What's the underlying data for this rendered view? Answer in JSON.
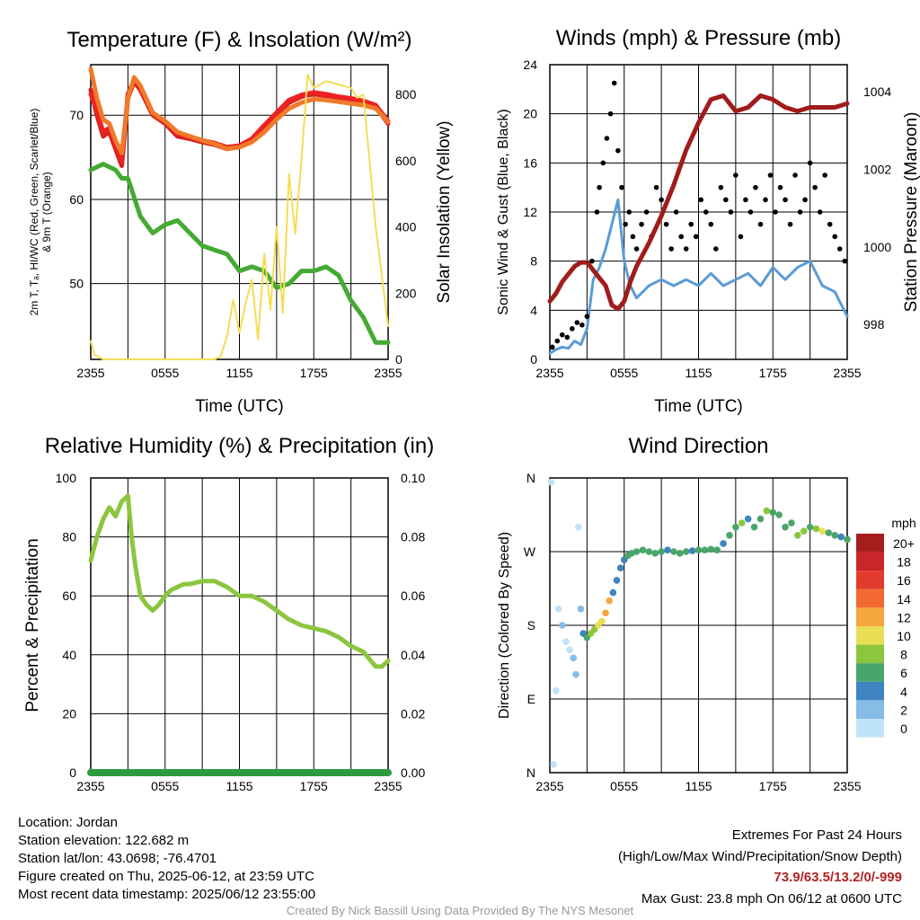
{
  "chart_data": [
    {
      "type": "line",
      "title": "Temperature (F) & Insolation (W/m²)",
      "xlabel": "Time (UTC)",
      "ylabel": "2m T, Td, HI/WC (Red, Green, Scarlet/Blue) & 9m T (Orange)",
      "ylabel_lines": [
        "2m T, Tₐ, HI/WC (Red, Green, Scarlet/Blue)",
        "& 9m T (Orange)"
      ],
      "y2label": "Solar Insolation (Yellow)",
      "x_ticks": [
        "2355",
        "0555",
        "1155",
        "1755",
        "2355"
      ],
      "y_ticks": [
        50,
        60,
        70
      ],
      "y2_ticks": [
        0,
        200,
        400,
        600,
        800
      ],
      "ylim": [
        41,
        76
      ],
      "y2lim": [
        0,
        890
      ],
      "xlim_hours": [
        0,
        24
      ],
      "grid": true,
      "series": [
        {
          "name": "2m T",
          "color": "#d42020",
          "axis": "left",
          "x": [
            0,
            0.5,
            1.0,
            1.5,
            2.0,
            2.5,
            3.0,
            3.5,
            4.0,
            5.0,
            6.0,
            7.0,
            8.0,
            9.0,
            10.0,
            11.0,
            12.0,
            13.0,
            14.0,
            15.0,
            16.0,
            17.0,
            18.0,
            19.0,
            20.0,
            21.0,
            22.0,
            23.0,
            24.0
          ],
          "y": [
            73,
            70,
            67.5,
            68,
            66,
            64,
            72,
            74,
            73,
            70,
            69,
            67.5,
            67.2,
            66.8,
            66.5,
            66,
            66.2,
            67,
            68.5,
            70,
            71.5,
            72.2,
            72.5,
            72.3,
            72,
            71.8,
            71.5,
            71,
            69
          ]
        },
        {
          "name": "HI/WC",
          "color": "#ee2222",
          "axis": "left",
          "x": [
            0,
            0.5,
            1.0,
            1.5,
            2.0,
            2.5,
            3.0,
            3.5,
            4.0,
            5.0,
            6.0,
            7.0,
            8.0,
            9.0,
            10.0,
            11.0,
            12.0,
            13.0,
            14.0,
            15.0,
            16.0,
            17.0,
            18.0,
            19.0,
            20.0,
            21.0,
            22.0,
            23.0,
            24.0
          ],
          "y": [
            72.5,
            70.5,
            68,
            68.5,
            66.5,
            64.5,
            72.5,
            74.2,
            73.2,
            70.2,
            69.2,
            67.8,
            67.4,
            67,
            66.7,
            66.2,
            66.4,
            67.2,
            68.8,
            70.3,
            71.8,
            72.4,
            72.7,
            72.5,
            72.2,
            72,
            71.7,
            71.2,
            69.3
          ]
        },
        {
          "name": "9m T",
          "color": "#f07a2a",
          "axis": "left",
          "x": [
            0,
            0.5,
            1.0,
            1.5,
            2.0,
            2.5,
            3.0,
            3.5,
            4.0,
            5.0,
            6.0,
            7.0,
            8.0,
            9.0,
            10.0,
            11.0,
            12.0,
            13.0,
            14.0,
            15.0,
            16.0,
            17.0,
            18.0,
            19.0,
            20.0,
            21.0,
            22.0,
            23.0,
            24.0
          ],
          "y": [
            75.5,
            72,
            69.5,
            69,
            67,
            65.5,
            72,
            74.5,
            73.5,
            70.3,
            69.3,
            68,
            67.5,
            67,
            66.6,
            66,
            66.2,
            66.8,
            68,
            69.5,
            70.8,
            71.5,
            71.9,
            71.8,
            71.6,
            71.4,
            71.2,
            70.8,
            69.2
          ]
        },
        {
          "name": "Td",
          "color": "#44aa33",
          "axis": "left",
          "x": [
            0,
            1.0,
            2.0,
            2.5,
            3.0,
            4.0,
            5.0,
            6.0,
            7.0,
            8.0,
            9.0,
            10.0,
            11.0,
            12.0,
            13.0,
            14.0,
            15.0,
            16.0,
            17.0,
            18.0,
            19.0,
            20.0,
            21.0,
            22.0,
            23.0,
            24.0
          ],
          "y": [
            63.5,
            64.2,
            63.5,
            62.5,
            62.5,
            58,
            56,
            57,
            57.5,
            56,
            54.5,
            54,
            53.5,
            51.5,
            52,
            51.5,
            49.5,
            50,
            51.5,
            51.5,
            52,
            51,
            48,
            46,
            43,
            43
          ]
        },
        {
          "name": "Insolation",
          "color": "#f5dd55",
          "axis": "right",
          "x": [
            0,
            0.3,
            1.0,
            2.0,
            4.0,
            6.0,
            8.0,
            9.0,
            9.5,
            10.0,
            10.5,
            11.0,
            11.5,
            12.0,
            12.5,
            13.0,
            13.5,
            14.0,
            14.5,
            15.0,
            15.5,
            16.0,
            16.5,
            17.0,
            17.5,
            18.0,
            19.0,
            20.0,
            21.0,
            21.5,
            22.0,
            22.5,
            23.0,
            23.5,
            24.0
          ],
          "y": [
            55,
            15,
            0,
            0,
            0,
            0,
            0,
            0,
            0,
            0,
            10,
            70,
            180,
            80,
            170,
            240,
            60,
            320,
            150,
            400,
            140,
            560,
            380,
            600,
            860,
            820,
            840,
            830,
            820,
            790,
            800,
            600,
            400,
            250,
            100
          ]
        }
      ]
    },
    {
      "type": "line",
      "title": "Winds (mph) & Pressure (mb)",
      "xlabel": "Time (UTC)",
      "ylabel": "Sonic Wind & Gust (Blue, Black)",
      "y2label": "Station Pressure (Maroon)",
      "x_ticks": [
        "2355",
        "0555",
        "1155",
        "1755",
        "2355"
      ],
      "y_ticks": [
        0,
        4,
        8,
        12,
        16,
        20,
        24
      ],
      "y2_ticks": [
        998,
        1000,
        1002,
        1004
      ],
      "ylim": [
        0,
        24
      ],
      "y2lim": [
        997.1,
        1004.7
      ],
      "grid": true,
      "series": [
        {
          "name": "Sonic Wind",
          "color": "#5b9bd5",
          "axis": "left",
          "x": [
            0,
            0.5,
            1.0,
            1.5,
            2.0,
            2.5,
            3.0,
            3.5,
            4.0,
            4.5,
            5.0,
            5.5,
            6.0,
            6.5,
            7.0,
            8.0,
            9.0,
            10.0,
            11.0,
            12.0,
            13.0,
            14.0,
            15.0,
            16.0,
            17.0,
            18.0,
            19.0,
            20.0,
            21.0,
            22.0,
            23.0,
            24.0
          ],
          "y": [
            0.5,
            0.8,
            1.0,
            0.9,
            1.5,
            1.2,
            2.5,
            6.5,
            7.5,
            9,
            11,
            13,
            8,
            6,
            5,
            6,
            6.5,
            6,
            6.5,
            6,
            7,
            6,
            6.5,
            7,
            6,
            7.5,
            6.5,
            7.5,
            8,
            6,
            5.5,
            3.5
          ]
        },
        {
          "name": "Gust",
          "color": "#000000",
          "axis": "left",
          "kind": "scatter",
          "x": [
            0.2,
            0.6,
            1.0,
            1.4,
            1.8,
            2.2,
            2.6,
            3.0,
            3.4,
            3.8,
            4.0,
            4.3,
            4.6,
            4.9,
            5.2,
            5.5,
            5.8,
            6.1,
            6.4,
            6.7,
            7.0,
            7.4,
            7.8,
            8.2,
            8.6,
            9.0,
            9.4,
            9.8,
            10.2,
            10.6,
            11.0,
            11.4,
            11.8,
            12.2,
            12.6,
            13.0,
            13.4,
            13.8,
            14.2,
            14.6,
            15.0,
            15.4,
            15.8,
            16.2,
            16.6,
            17.0,
            17.4,
            17.8,
            18.2,
            18.6,
            19.0,
            19.4,
            19.8,
            20.2,
            20.6,
            21.0,
            21.4,
            21.8,
            22.2,
            22.6,
            23.0,
            23.4,
            23.8
          ],
          "y": [
            1,
            1.5,
            2,
            1.8,
            2.5,
            3,
            2.8,
            3.5,
            8,
            12,
            14,
            16,
            18,
            20,
            22.5,
            17,
            14,
            11,
            12,
            10,
            9,
            11,
            12,
            10,
            14,
            13,
            11,
            9,
            12,
            10,
            9,
            11,
            10,
            13,
            12,
            11,
            9,
            14,
            13,
            12,
            15,
            10,
            13,
            12,
            14,
            11,
            13,
            15,
            12,
            14,
            13,
            11,
            15,
            12,
            13,
            16,
            14,
            12,
            15,
            11,
            10,
            9,
            8
          ]
        },
        {
          "name": "Station Pressure",
          "color": "#a01c1c",
          "axis": "right",
          "x": [
            0,
            0.5,
            1.0,
            1.5,
            2.0,
            2.5,
            3.0,
            3.5,
            4.0,
            4.5,
            5.0,
            5.5,
            6.0,
            6.5,
            7.0,
            8.0,
            9.0,
            10.0,
            11.0,
            12.0,
            13.0,
            14.0,
            15.0,
            16.0,
            17.0,
            18.0,
            19.0,
            20.0,
            21.0,
            22.0,
            23.0,
            24.0
          ],
          "y": [
            998.6,
            998.8,
            999.1,
            999.3,
            999.5,
            999.6,
            999.6,
            999.4,
            999.2,
            999.0,
            998.5,
            998.4,
            998.6,
            999.1,
            999.5,
            1000.1,
            1000.8,
            1001.6,
            1002.5,
            1003.2,
            1003.8,
            1003.9,
            1003.5,
            1003.6,
            1003.9,
            1003.8,
            1003.6,
            1003.5,
            1003.6,
            1003.6,
            1003.6,
            1003.7
          ]
        }
      ]
    },
    {
      "type": "line",
      "title": "Relative Humidity (%) & Precipitation (in)",
      "xlabel": "",
      "ylabel": "Percent & Precipitation",
      "x_ticks": [
        "2355",
        "0555",
        "1155",
        "1755",
        "2355"
      ],
      "y_ticks": [
        0,
        20,
        40,
        60,
        80,
        100
      ],
      "y2_ticks": [
        "0.00",
        "0.02",
        "0.04",
        "0.06",
        "0.08",
        "0.10"
      ],
      "ylim": [
        0,
        100
      ],
      "y2lim": [
        0,
        0.1
      ],
      "grid": true,
      "series": [
        {
          "name": "Relative Humidity",
          "color": "#8cc63f",
          "axis": "left",
          "x": [
            0,
            0.5,
            1.0,
            1.5,
            2.0,
            2.5,
            3.0,
            3.3,
            3.6,
            4.0,
            4.5,
            5.0,
            5.5,
            6.0,
            6.5,
            7.0,
            7.5,
            8.0,
            9.0,
            10.0,
            11.0,
            12.0,
            13.0,
            14.0,
            15.0,
            16.0,
            17.0,
            18.0,
            19.0,
            20.0,
            21.0,
            22.0,
            23.0,
            23.5,
            24.0
          ],
          "y": [
            72,
            80,
            86,
            90,
            87,
            92,
            94,
            80,
            70,
            60,
            57,
            55,
            57,
            60,
            62,
            63,
            64,
            64,
            65,
            65,
            63,
            60,
            60,
            58,
            55,
            52,
            50,
            49,
            48,
            46,
            43,
            41,
            36,
            36,
            38
          ]
        },
        {
          "name": "Precipitation",
          "color": "#2e9a3e",
          "axis": "right",
          "x": [
            0,
            24
          ],
          "y": [
            0,
            0
          ]
        }
      ]
    },
    {
      "type": "scatter",
      "title": "Wind Direction",
      "xlabel": "",
      "ylabel": "Direction (Colored By Speed)",
      "x_ticks": [
        "2355",
        "0555",
        "1155",
        "1755",
        "2355"
      ],
      "y_ticks": [
        "N",
        "E",
        "S",
        "W",
        "N"
      ],
      "ylim_degrees": [
        0,
        360
      ],
      "grid": true,
      "colorbar": {
        "title": "mph",
        "labels": [
          "20+",
          "18",
          "16",
          "14",
          "12",
          "10",
          "8",
          "6",
          "4",
          "2",
          "0"
        ],
        "colors": [
          "#a51d1d",
          "#c9252a",
          "#e23b2e",
          "#f26a31",
          "#f6a63f",
          "#e8de55",
          "#8cc63f",
          "#4aa56a",
          "#3e84c1",
          "#86bde6",
          "#bfe3f7"
        ]
      },
      "x": [
        0.1,
        0.3,
        0.5,
        0.7,
        1.0,
        1.3,
        1.6,
        1.9,
        2.1,
        2.3,
        2.5,
        2.7,
        3.0,
        3.3,
        3.6,
        3.9,
        4.2,
        4.5,
        4.8,
        5.1,
        5.4,
        5.7,
        6.0,
        6.3,
        6.6,
        7.0,
        7.5,
        8.0,
        8.5,
        9.0,
        9.5,
        10.0,
        10.5,
        11.0,
        11.5,
        12.0,
        12.5,
        13.0,
        13.5,
        14.0,
        14.5,
        15.0,
        15.5,
        16.0,
        16.5,
        17.0,
        17.5,
        18.0,
        18.5,
        19.0,
        19.5,
        20.0,
        20.5,
        21.0,
        21.5,
        22.0,
        22.5,
        23.0,
        23.5,
        24.0
      ],
      "dir": [
        355,
        10,
        100,
        200,
        180,
        160,
        150,
        140,
        120,
        300,
        200,
        170,
        165,
        170,
        175,
        180,
        185,
        195,
        210,
        220,
        235,
        250,
        260,
        265,
        268,
        270,
        272,
        270,
        268,
        270,
        272,
        270,
        268,
        270,
        271,
        272,
        272,
        273,
        272,
        280,
        290,
        300,
        305,
        310,
        300,
        310,
        320,
        318,
        315,
        300,
        305,
        290,
        295,
        300,
        298,
        295,
        293,
        290,
        288,
        285
      ],
      "speed": [
        1,
        1,
        0,
        1,
        2,
        1,
        1,
        2,
        3,
        1,
        2,
        4,
        6,
        8,
        9,
        10,
        11,
        12,
        12,
        5,
        4,
        4,
        5,
        6,
        6,
        6,
        6,
        7,
        6,
        6,
        5,
        6,
        6,
        6,
        5,
        6,
        6,
        7,
        6,
        4,
        6,
        7,
        8,
        5,
        6,
        7,
        8,
        6,
        7,
        6,
        7,
        8,
        9,
        7,
        8,
        10,
        7,
        6,
        5,
        7
      ]
    }
  ],
  "location": "Location: Jordan",
  "elevation": "Station elevation: 122.682 m",
  "latlon": "Station lat/lon: 43.0698; -76.4701",
  "created": "Figure created on Thu, 2025-06-12, at 23:59 UTC",
  "recent": "Most recent data timestamp: 2025/06/12 23:55:00",
  "extremes_title": "Extremes For Past 24 Hours",
  "extremes_subtitle": "(High/Low/Max Wind/Precipitation/Snow Depth)",
  "extremes_values": "73.9/63.5/13.2/0/-999",
  "max_gust": "Max Gust: 23.8 mph On 06/12 at 0600 UTC",
  "credit": "Created By Nick Bassill Using Data Provided By The NYS Mesonet"
}
